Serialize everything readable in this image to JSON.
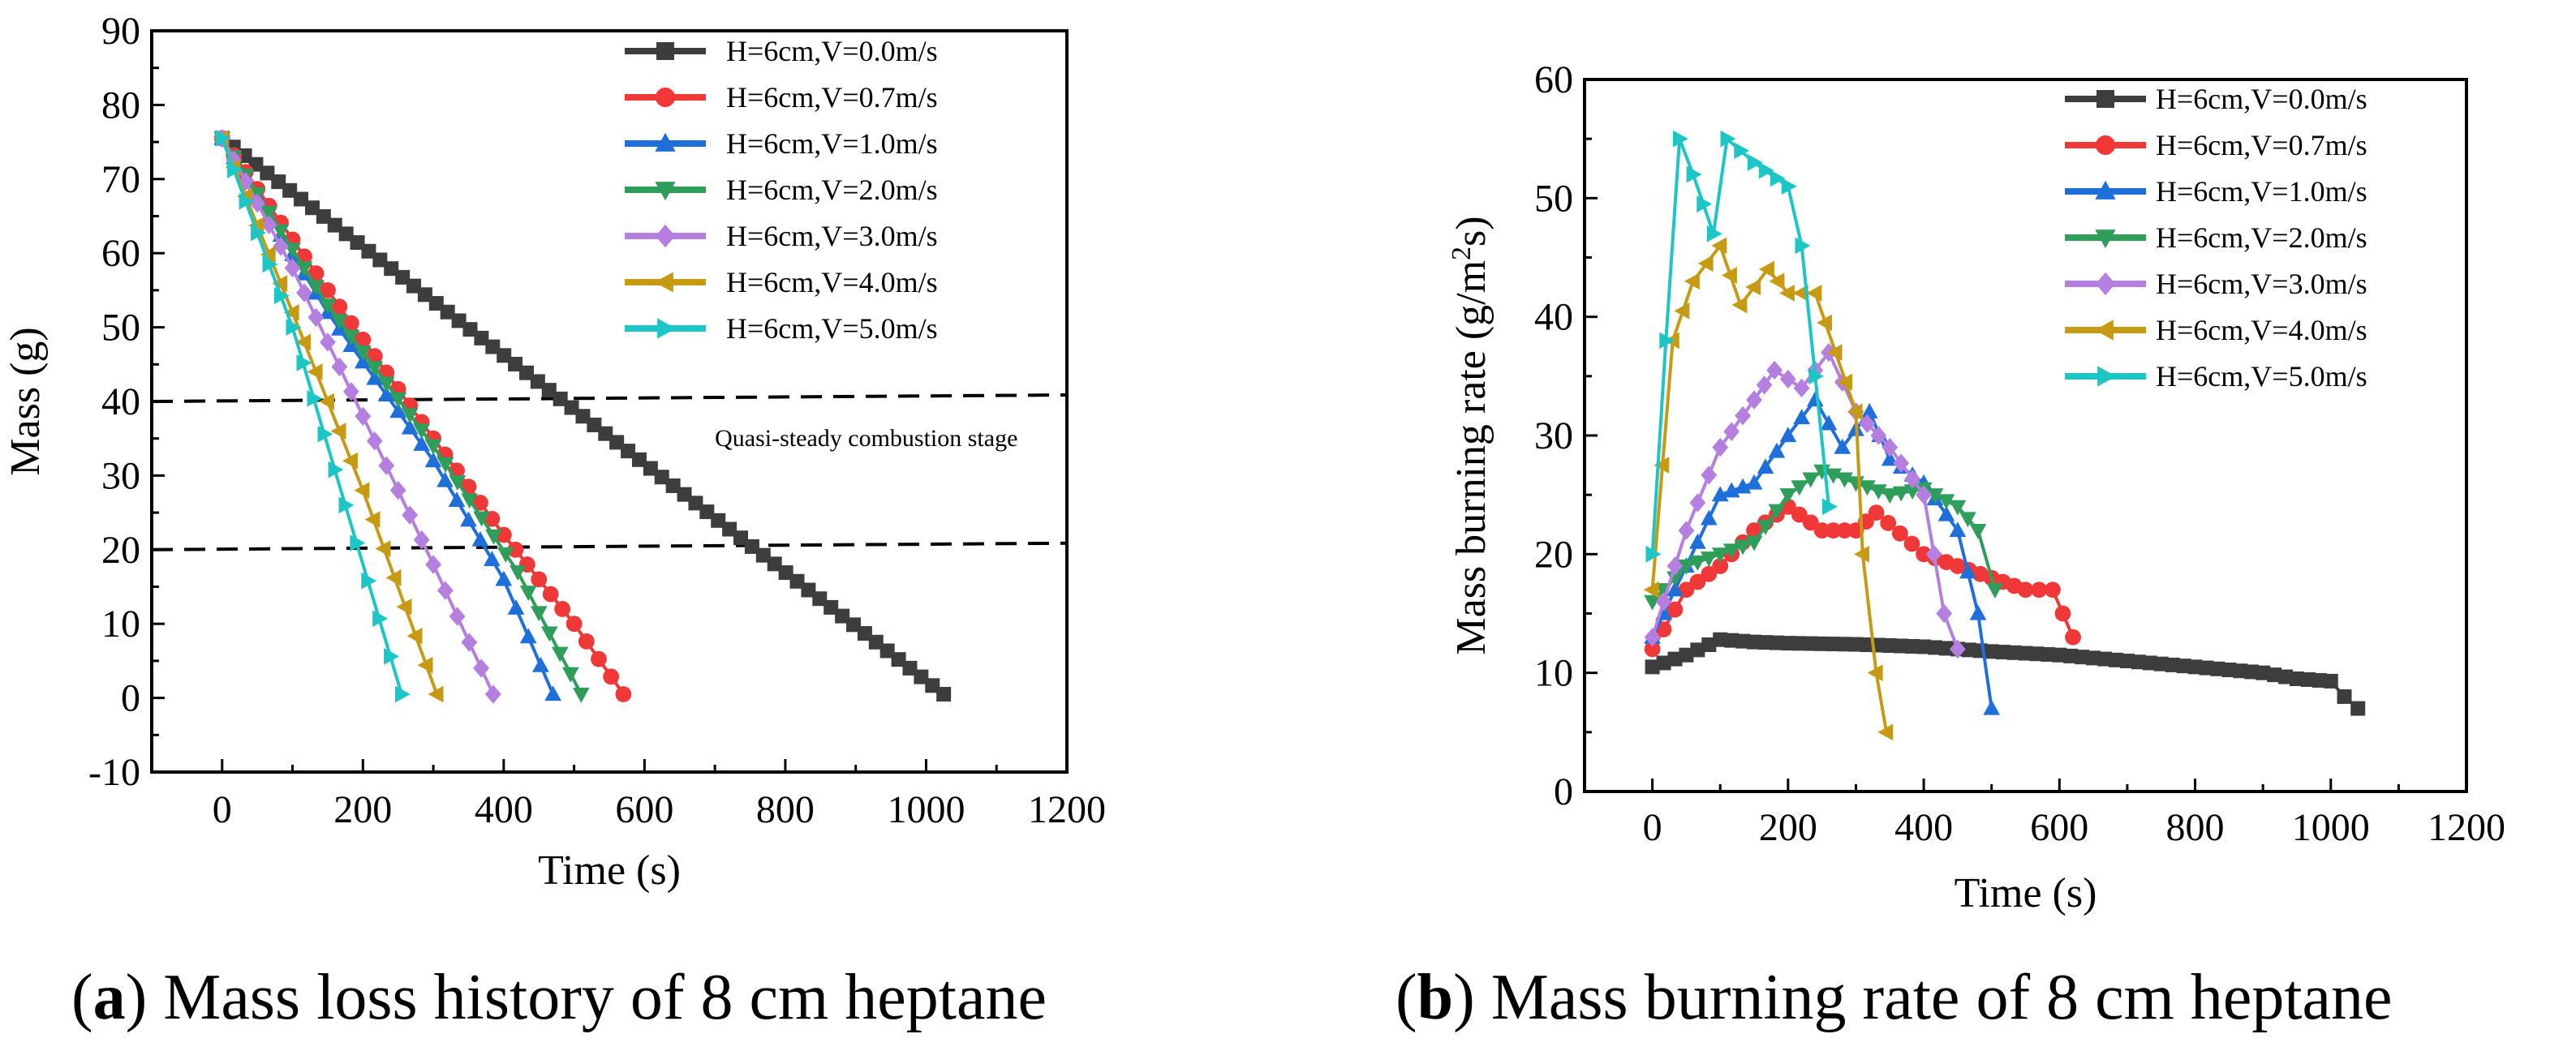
{
  "chart_data": [
    {
      "type": "line",
      "panel_letter": "a",
      "caption": "Mass loss history of 8 cm heptane",
      "xlabel": "Time (s)",
      "ylabel": "Mass (g)",
      "xlim": [
        -100,
        1200
      ],
      "ylim": [
        -10,
        90
      ],
      "xticks": [
        0,
        200,
        400,
        600,
        800,
        1000,
        1200
      ],
      "yticks": [
        -10,
        0,
        10,
        20,
        30,
        40,
        50,
        60,
        70,
        80,
        90
      ],
      "legend_position": "top-right",
      "annotations": [
        {
          "type": "hline",
          "y": 40,
          "style": "dashed"
        },
        {
          "type": "hline",
          "y": 20,
          "style": "dashed"
        },
        {
          "type": "text",
          "text": "Quasi-steady combustion stage",
          "x": 700,
          "y": 34
        }
      ],
      "series": [
        {
          "name": "H=6cm,V=0.0m/s",
          "color": "#3d3d3d",
          "marker": "square",
          "points": [
            [
              0,
              75.5
            ],
            [
              1025,
              0.5
            ]
          ]
        },
        {
          "name": "H=6cm,V=0.7m/s",
          "color": "#f03838",
          "marker": "circle",
          "points": [
            [
              0,
              75.5
            ],
            [
              150,
              55
            ],
            [
              300,
              35
            ],
            [
              400,
              22
            ],
            [
              500,
              10
            ],
            [
              570,
              0.5
            ]
          ]
        },
        {
          "name": "H=6cm,V=1.0m/s",
          "color": "#1f6fdb",
          "marker": "triangle-up",
          "points": [
            [
              0,
              75.5
            ],
            [
              150,
              52
            ],
            [
              300,
              32
            ],
            [
              400,
              16
            ],
            [
              470,
              0.5
            ]
          ]
        },
        {
          "name": "H=6cm,V=2.0m/s",
          "color": "#2e9e5a",
          "marker": "triangle-down",
          "points": [
            [
              0,
              75.5
            ],
            [
              150,
              53
            ],
            [
              300,
              34
            ],
            [
              420,
              17
            ],
            [
              510,
              0.5
            ]
          ]
        },
        {
          "name": "H=6cm,V=3.0m/s",
          "color": "#b57fe0",
          "marker": "diamond",
          "points": [
            [
              0,
              75.5
            ],
            [
              100,
              58
            ],
            [
              200,
              38
            ],
            [
              300,
              18
            ],
            [
              385,
              0.5
            ]
          ]
        },
        {
          "name": "H=6cm,V=4.0m/s",
          "color": "#c79a14",
          "marker": "triangle-left",
          "points": [
            [
              0,
              75.5
            ],
            [
              100,
              52
            ],
            [
              200,
              28
            ],
            [
              305,
              0.5
            ]
          ]
        },
        {
          "name": "H=6cm,V=5.0m/s",
          "color": "#1cc6c6",
          "marker": "triangle-right",
          "points": [
            [
              0,
              75.5
            ],
            [
              100,
              50
            ],
            [
              175,
              26
            ],
            [
              255,
              0.5
            ]
          ]
        }
      ]
    },
    {
      "type": "line",
      "panel_letter": "b",
      "caption": "Mass burning rate of 8 cm heptane",
      "xlabel": "Time (s)",
      "ylabel": "Mass burning rate (g/m",
      "ylabel_sup": "2",
      "ylabel_tail": "s)",
      "xlim": [
        -100,
        1200
      ],
      "ylim": [
        0,
        60
      ],
      "xticks": [
        0,
        200,
        400,
        600,
        800,
        1000,
        1200
      ],
      "yticks": [
        0,
        10,
        20,
        30,
        40,
        50,
        60
      ],
      "legend_position": "top-right",
      "series": [
        {
          "name": "H=6cm,V=0.0m/s",
          "color": "#3d3d3d",
          "marker": "square",
          "points": [
            [
              0,
              10.5
            ],
            [
              50,
              11.5
            ],
            [
              100,
              12.8
            ],
            [
              150,
              12.6
            ],
            [
              200,
              12.5
            ],
            [
              300,
              12.4
            ],
            [
              400,
              12.2
            ],
            [
              500,
              11.8
            ],
            [
              600,
              11.5
            ],
            [
              700,
              11
            ],
            [
              800,
              10.5
            ],
            [
              900,
              10
            ],
            [
              950,
              9.5
            ],
            [
              1000,
              9.3
            ],
            [
              1020,
              8
            ],
            [
              1040,
              7
            ]
          ]
        },
        {
          "name": "H=6cm,V=0.7m/s",
          "color": "#f03838",
          "marker": "circle",
          "points": [
            [
              0,
              12
            ],
            [
              50,
              17
            ],
            [
              100,
              19
            ],
            [
              150,
              22
            ],
            [
              200,
              24
            ],
            [
              250,
              22
            ],
            [
              300,
              22
            ],
            [
              330,
              23.5
            ],
            [
              400,
              20
            ],
            [
              450,
              19
            ],
            [
              500,
              18
            ],
            [
              550,
              17
            ],
            [
              590,
              17
            ],
            [
              620,
              13
            ]
          ]
        },
        {
          "name": "H=6cm,V=1.0m/s",
          "color": "#1f6fdb",
          "marker": "triangle-up",
          "points": [
            [
              0,
              13
            ],
            [
              50,
              19
            ],
            [
              100,
              25
            ],
            [
              150,
              26
            ],
            [
              200,
              30
            ],
            [
              240,
              33
            ],
            [
              280,
              29
            ],
            [
              320,
              32
            ],
            [
              350,
              28
            ],
            [
              400,
              26
            ],
            [
              450,
              22
            ],
            [
              480,
              15
            ],
            [
              500,
              7
            ]
          ]
        },
        {
          "name": "H=6cm,V=2.0m/s",
          "color": "#2e9e5a",
          "marker": "triangle-down",
          "points": [
            [
              0,
              16
            ],
            [
              50,
              19
            ],
            [
              100,
              20
            ],
            [
              150,
              21
            ],
            [
              200,
              25
            ],
            [
              250,
              27
            ],
            [
              300,
              26
            ],
            [
              350,
              25
            ],
            [
              400,
              25.5
            ],
            [
              450,
              24
            ],
            [
              480,
              22
            ],
            [
              505,
              17
            ]
          ]
        },
        {
          "name": "H=6cm,V=3.0m/s",
          "color": "#b57fe0",
          "marker": "diamond",
          "points": [
            [
              0,
              13
            ],
            [
              50,
              22
            ],
            [
              100,
              29
            ],
            [
              150,
              33
            ],
            [
              180,
              35.5
            ],
            [
              220,
              34
            ],
            [
              260,
              37
            ],
            [
              300,
              32
            ],
            [
              350,
              29
            ],
            [
              400,
              25
            ],
            [
              430,
              15
            ],
            [
              450,
              12
            ]
          ]
        },
        {
          "name": "H=6cm,V=4.0m/s",
          "color": "#c79a14",
          "marker": "triangle-left",
          "points": [
            [
              0,
              17
            ],
            [
              30,
              38
            ],
            [
              60,
              43
            ],
            [
              100,
              46
            ],
            [
              130,
              41
            ],
            [
              170,
              44
            ],
            [
              200,
              42
            ],
            [
              240,
              42
            ],
            [
              270,
              37
            ],
            [
              300,
              32
            ],
            [
              310,
              20
            ],
            [
              330,
              10
            ],
            [
              345,
              5
            ]
          ]
        },
        {
          "name": "H=6cm,V=5.0m/s",
          "color": "#1cc6c6",
          "marker": "triangle-right",
          "points": [
            [
              0,
              20
            ],
            [
              20,
              38
            ],
            [
              40,
              55
            ],
            [
              60,
              52
            ],
            [
              90,
              47
            ],
            [
              110,
              55
            ],
            [
              150,
              53
            ],
            [
              200,
              51
            ],
            [
              220,
              46
            ],
            [
              240,
              35
            ],
            [
              260,
              24
            ]
          ]
        }
      ]
    }
  ]
}
